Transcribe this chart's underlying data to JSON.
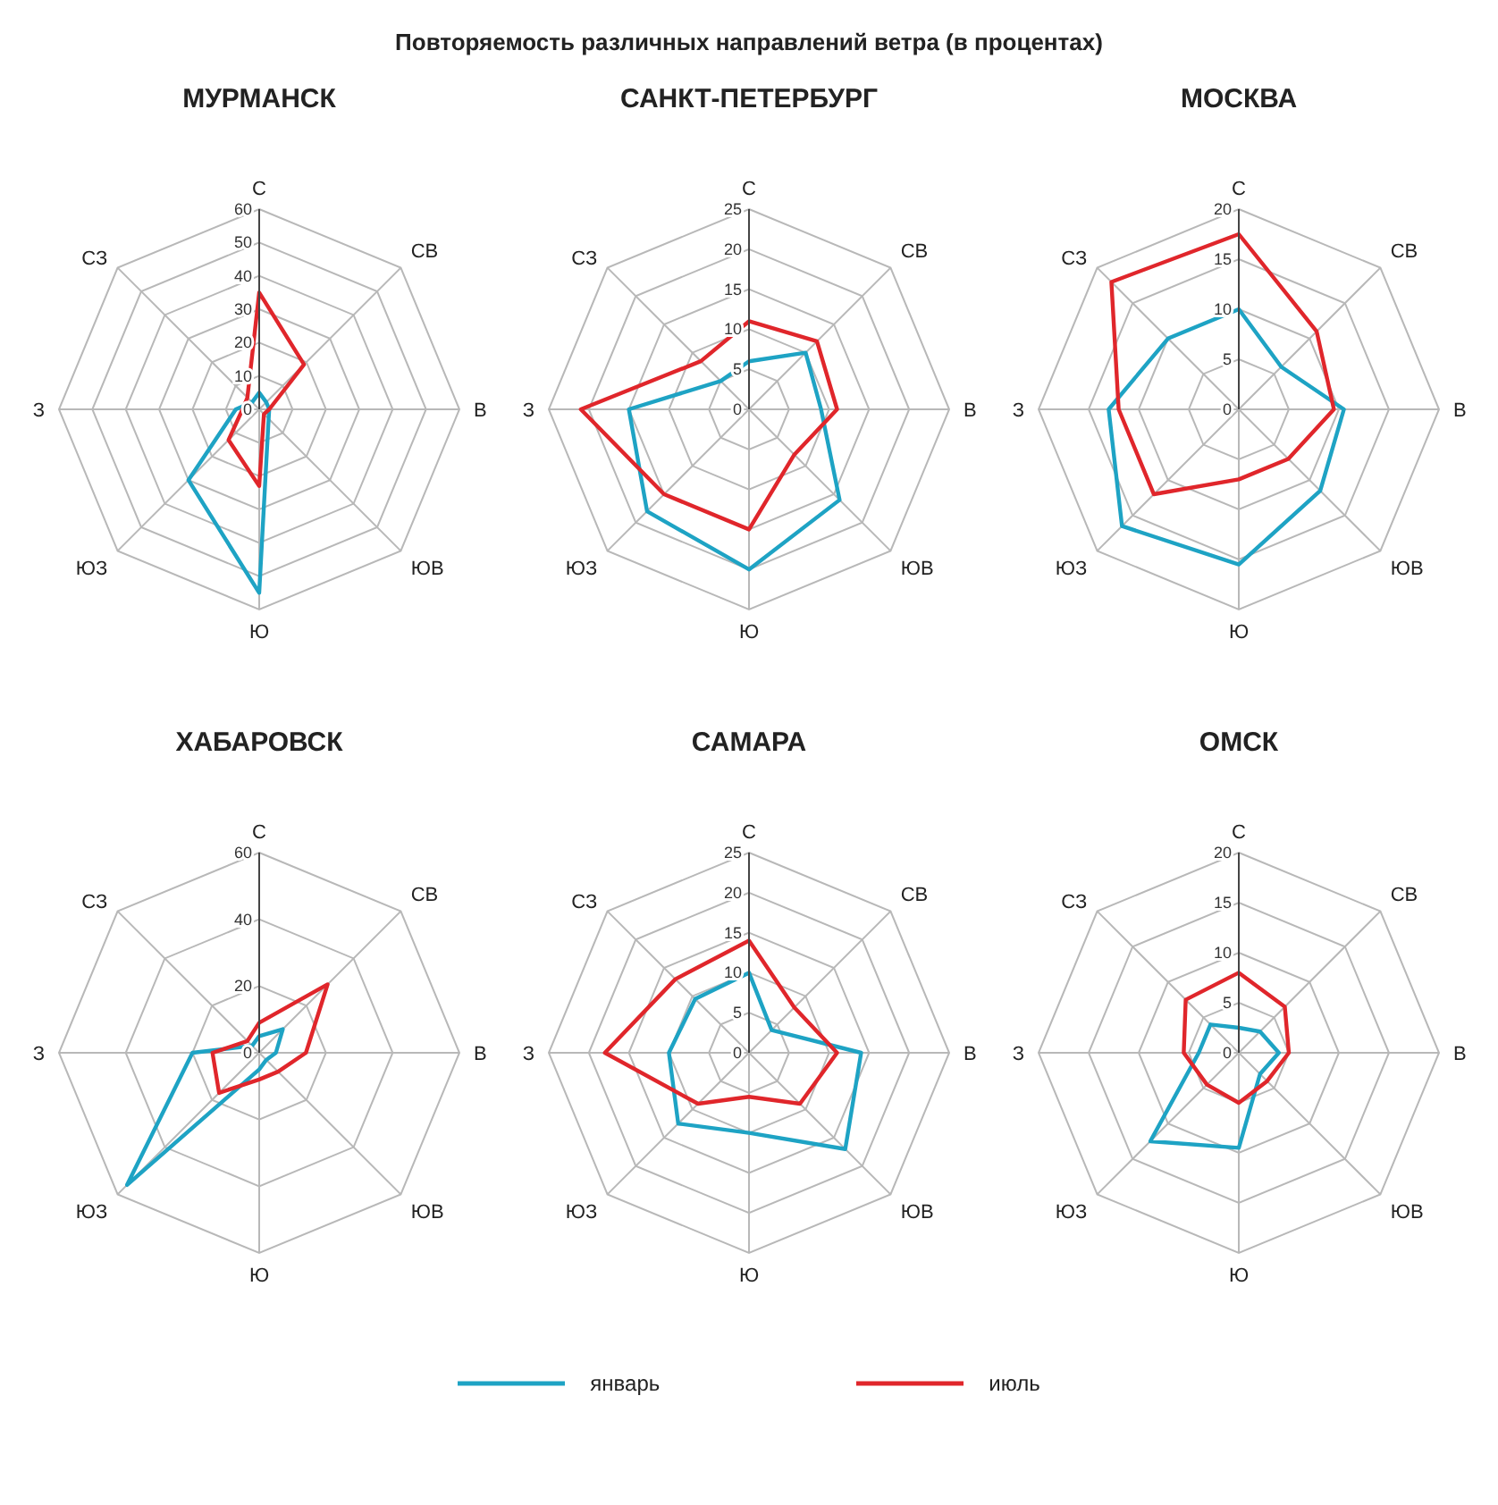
{
  "chart_data": [
    {
      "type": "radar",
      "title": "МУРМАНСК",
      "annotations": [
        "Повторяемость различных направлений ветра (в процентах)"
      ],
      "categories": [
        "С",
        "СВ",
        "В",
        "ЮВ",
        "Ю",
        "ЮЗ",
        "З",
        "СЗ"
      ],
      "ylim": [
        0,
        60
      ],
      "yticks": [
        0,
        10,
        20,
        30,
        40,
        50,
        60
      ],
      "grid": true,
      "legend": "bottom",
      "series": [
        {
          "name": "январь",
          "color": "#1ea3c4",
          "values": [
            5,
            3,
            3,
            4,
            55,
            30,
            7,
            3
          ]
        },
        {
          "name": "июль",
          "color": "#e0262b",
          "values": [
            35,
            19,
            3,
            2,
            23,
            13,
            5,
            5
          ]
        }
      ]
    },
    {
      "type": "radar",
      "title": "САНКТ-ПЕТЕРБУРГ",
      "categories": [
        "С",
        "СВ",
        "В",
        "ЮВ",
        "Ю",
        "ЮЗ",
        "З",
        "СЗ"
      ],
      "ylim": [
        0,
        25
      ],
      "yticks": [
        0,
        5,
        10,
        15,
        20,
        25
      ],
      "grid": true,
      "series": [
        {
          "color": "#1ea3c4",
          "values": [
            6,
            10,
            9,
            16,
            20,
            18,
            15,
            5
          ]
        },
        {
          "color": "#e0262b",
          "values": [
            11,
            12,
            11,
            8,
            15,
            15,
            21,
            8.5
          ]
        }
      ]
    },
    {
      "type": "radar",
      "title": "МОСКВА",
      "categories": [
        "С",
        "СВ",
        "В",
        "ЮВ",
        "Ю",
        "ЮЗ",
        "З",
        "СЗ"
      ],
      "ylim": [
        0,
        20
      ],
      "yticks": [
        0,
        5,
        10,
        15,
        20
      ],
      "grid": true,
      "series": [
        {
          "color": "#1ea3c4",
          "values": [
            10,
            6,
            10.5,
            11.5,
            15.5,
            16.5,
            13,
            10
          ]
        },
        {
          "color": "#e0262b",
          "values": [
            17.5,
            11,
            9.5,
            7,
            7,
            12,
            12,
            18
          ]
        }
      ]
    },
    {
      "type": "radar",
      "title": "ХАБАРОВСК",
      "categories": [
        "С",
        "СВ",
        "В",
        "ЮВ",
        "Ю",
        "ЮЗ",
        "З",
        "СЗ"
      ],
      "ylim": [
        0,
        60
      ],
      "yticks": [
        0,
        20,
        40,
        60
      ],
      "grid": true,
      "series": [
        {
          "color": "#1ea3c4",
          "values": [
            5,
            10,
            5,
            3,
            5,
            56,
            20,
            3
          ]
        },
        {
          "color": "#e0262b",
          "values": [
            9,
            29,
            14,
            8,
            8,
            17,
            14,
            5
          ]
        }
      ]
    },
    {
      "type": "radar",
      "title": "САМАРА",
      "categories": [
        "С",
        "СВ",
        "В",
        "ЮВ",
        "Ю",
        "ЮЗ",
        "З",
        "СЗ"
      ],
      "ylim": [
        0,
        25
      ],
      "yticks": [
        0,
        5,
        10,
        15,
        20,
        25
      ],
      "grid": true,
      "series": [
        {
          "color": "#1ea3c4",
          "values": [
            10,
            4,
            14,
            17,
            10,
            12.5,
            10,
            9.5
          ]
        },
        {
          "color": "#e0262b",
          "values": [
            14,
            8,
            11,
            9,
            5.5,
            9,
            18,
            13
          ]
        }
      ]
    },
    {
      "type": "radar",
      "title": "ОМСК",
      "categories": [
        "С",
        "СВ",
        "В",
        "ЮВ",
        "Ю",
        "ЮЗ",
        "З",
        "СЗ"
      ],
      "ylim": [
        0,
        20
      ],
      "yticks": [
        0,
        5,
        10,
        15,
        20
      ],
      "grid": true,
      "series": [
        {
          "color": "#1ea3c4",
          "values": [
            2.5,
            3,
            4,
            3,
            9.5,
            12.5,
            4,
            4
          ]
        },
        {
          "color": "#e0262b",
          "values": [
            8,
            6.5,
            5,
            4,
            5,
            4.5,
            5.5,
            7.5
          ]
        }
      ]
    }
  ]
}
